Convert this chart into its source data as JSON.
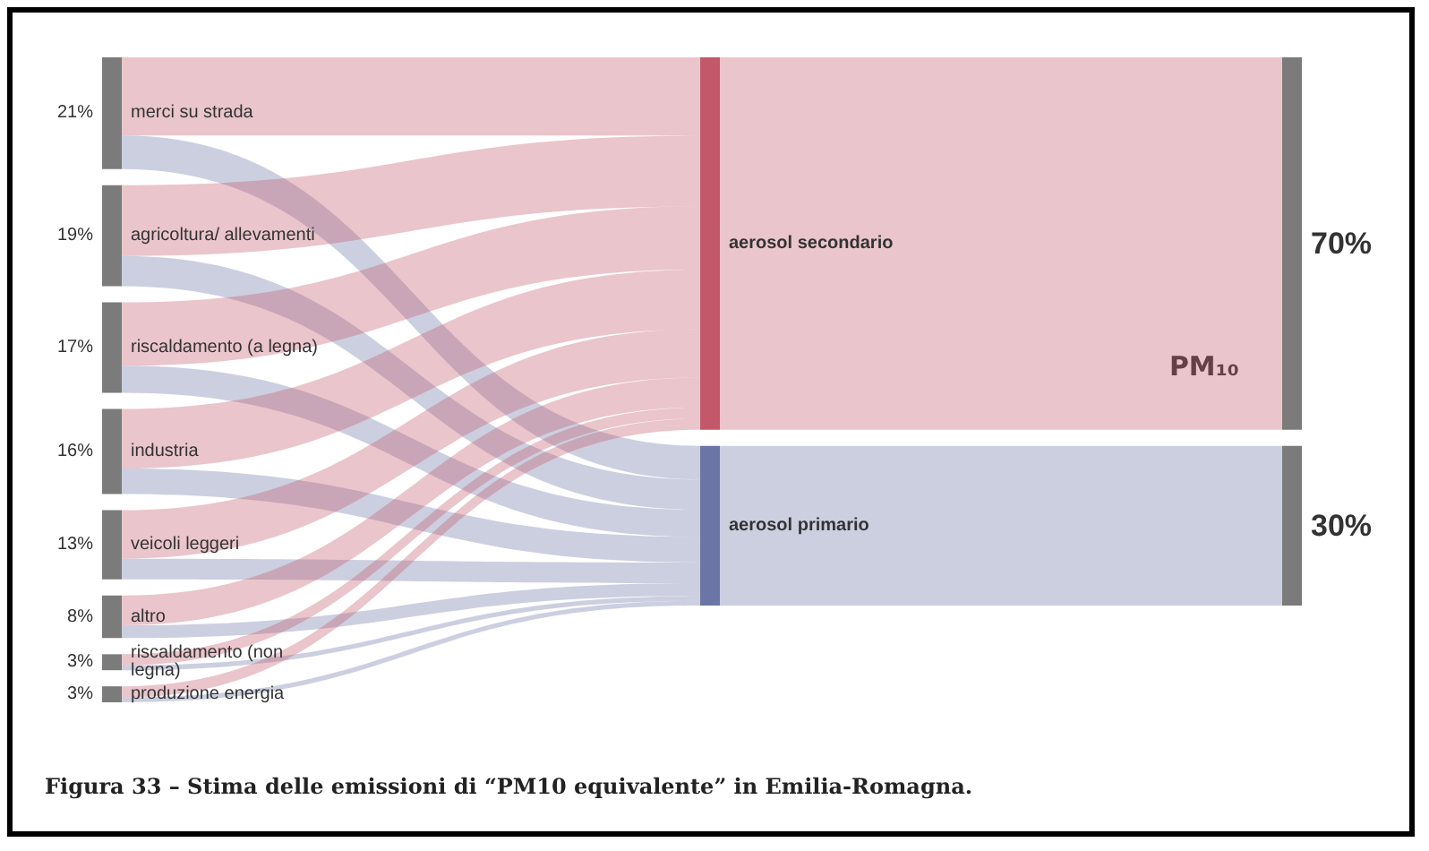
{
  "chart_data": [
    {
      "type": "other",
      "categories": [
        "merci su strada",
        "agricoltura/ allevamenti",
        "riscaldamento (a legna)",
        "industria",
        "veicoli leggeri",
        "altro",
        "riscaldamento (non legna)",
        "produzione energia"
      ],
      "values": [
        21,
        19,
        17,
        16,
        13,
        8,
        3,
        3
      ],
      "value_labels": [
        "21%",
        "19%",
        "17%",
        "16%",
        "13%",
        "8%",
        "3%",
        "3%"
      ],
      "color": "#7b7b7b",
      "annotations": [
        "Figura 33 – Stima delle emissioni di “PM10 equivalente” in Emilia-Romagna."
      ]
    },
    {
      "type": "other",
      "categories": [
        "aerosol secondario",
        "aerosol primario"
      ],
      "values": [
        70,
        30
      ],
      "value_labels": [
        "70%",
        "30%"
      ],
      "colors": [
        "#c4586b",
        "#6c76a6"
      ],
      "annotations": [
        "PM₁₀"
      ]
    }
  ]
}
